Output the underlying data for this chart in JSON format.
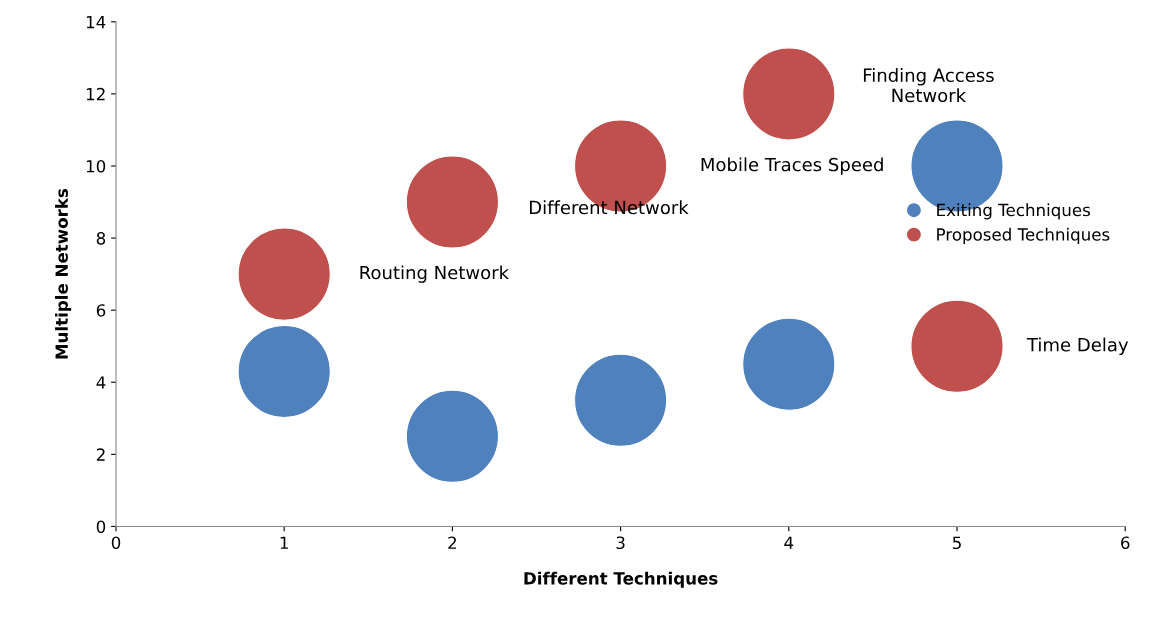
{
  "chart_data": {
    "type": "bubble",
    "xlabel": "Different Techniques",
    "ylabel": "Multiple Networks",
    "xlim": [
      0,
      6
    ],
    "xticks": [
      0,
      1,
      2,
      3,
      4,
      5,
      6
    ],
    "ylim": [
      0,
      14
    ],
    "yticks": [
      0,
      2,
      4,
      6,
      8,
      10,
      12,
      14
    ],
    "grid": false,
    "legend": "right",
    "marker": "circle",
    "series": [
      {
        "name": "Exiting Techniques",
        "color": "#4f81bd",
        "x": [
          1,
          2,
          3,
          4,
          5
        ],
        "values": [
          4.3,
          2.5,
          3.5,
          4.5,
          10
        ],
        "sizes": [
          1,
          1,
          1,
          1,
          1
        ]
      },
      {
        "name": "Proposed Techniques",
        "color": "#c0504d",
        "x": [
          1,
          2,
          3,
          4,
          5
        ],
        "values": [
          7,
          9,
          10,
          12,
          5
        ],
        "sizes": [
          1,
          1,
          1,
          1,
          1
        ]
      }
    ],
    "annotations": [
      "Routing Network",
      "Different Network",
      "Finding Access\nNetwork",
      "Mobile Traces Speed",
      "Time Delay"
    ]
  }
}
